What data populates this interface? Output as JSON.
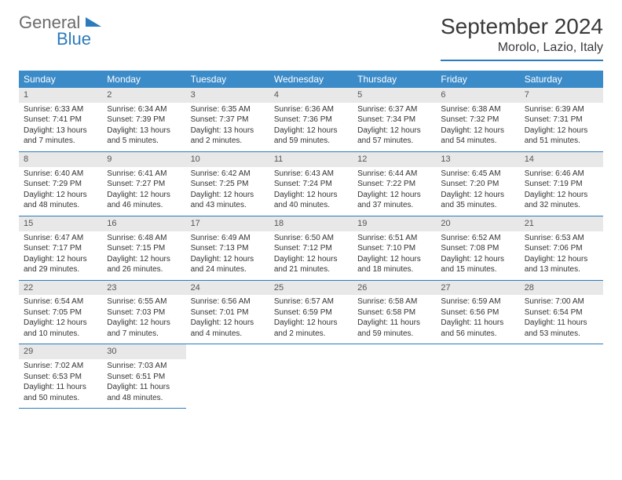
{
  "brand": {
    "general": "General",
    "blue": "Blue"
  },
  "title": "September 2024",
  "location": "Morolo, Lazio, Italy",
  "colors": {
    "header_bg": "#3b8bc9",
    "accent": "#2b7bbd",
    "daynum_bg": "#e8e8e8",
    "text": "#333333"
  },
  "weekdays": [
    "Sunday",
    "Monday",
    "Tuesday",
    "Wednesday",
    "Thursday",
    "Friday",
    "Saturday"
  ],
  "days": [
    {
      "n": 1,
      "sr": "6:33 AM",
      "ss": "7:41 PM",
      "dl": "13 hours and 7 minutes."
    },
    {
      "n": 2,
      "sr": "6:34 AM",
      "ss": "7:39 PM",
      "dl": "13 hours and 5 minutes."
    },
    {
      "n": 3,
      "sr": "6:35 AM",
      "ss": "7:37 PM",
      "dl": "13 hours and 2 minutes."
    },
    {
      "n": 4,
      "sr": "6:36 AM",
      "ss": "7:36 PM",
      "dl": "12 hours and 59 minutes."
    },
    {
      "n": 5,
      "sr": "6:37 AM",
      "ss": "7:34 PM",
      "dl": "12 hours and 57 minutes."
    },
    {
      "n": 6,
      "sr": "6:38 AM",
      "ss": "7:32 PM",
      "dl": "12 hours and 54 minutes."
    },
    {
      "n": 7,
      "sr": "6:39 AM",
      "ss": "7:31 PM",
      "dl": "12 hours and 51 minutes."
    },
    {
      "n": 8,
      "sr": "6:40 AM",
      "ss": "7:29 PM",
      "dl": "12 hours and 48 minutes."
    },
    {
      "n": 9,
      "sr": "6:41 AM",
      "ss": "7:27 PM",
      "dl": "12 hours and 46 minutes."
    },
    {
      "n": 10,
      "sr": "6:42 AM",
      "ss": "7:25 PM",
      "dl": "12 hours and 43 minutes."
    },
    {
      "n": 11,
      "sr": "6:43 AM",
      "ss": "7:24 PM",
      "dl": "12 hours and 40 minutes."
    },
    {
      "n": 12,
      "sr": "6:44 AM",
      "ss": "7:22 PM",
      "dl": "12 hours and 37 minutes."
    },
    {
      "n": 13,
      "sr": "6:45 AM",
      "ss": "7:20 PM",
      "dl": "12 hours and 35 minutes."
    },
    {
      "n": 14,
      "sr": "6:46 AM",
      "ss": "7:19 PM",
      "dl": "12 hours and 32 minutes."
    },
    {
      "n": 15,
      "sr": "6:47 AM",
      "ss": "7:17 PM",
      "dl": "12 hours and 29 minutes."
    },
    {
      "n": 16,
      "sr": "6:48 AM",
      "ss": "7:15 PM",
      "dl": "12 hours and 26 minutes."
    },
    {
      "n": 17,
      "sr": "6:49 AM",
      "ss": "7:13 PM",
      "dl": "12 hours and 24 minutes."
    },
    {
      "n": 18,
      "sr": "6:50 AM",
      "ss": "7:12 PM",
      "dl": "12 hours and 21 minutes."
    },
    {
      "n": 19,
      "sr": "6:51 AM",
      "ss": "7:10 PM",
      "dl": "12 hours and 18 minutes."
    },
    {
      "n": 20,
      "sr": "6:52 AM",
      "ss": "7:08 PM",
      "dl": "12 hours and 15 minutes."
    },
    {
      "n": 21,
      "sr": "6:53 AM",
      "ss": "7:06 PM",
      "dl": "12 hours and 13 minutes."
    },
    {
      "n": 22,
      "sr": "6:54 AM",
      "ss": "7:05 PM",
      "dl": "12 hours and 10 minutes."
    },
    {
      "n": 23,
      "sr": "6:55 AM",
      "ss": "7:03 PM",
      "dl": "12 hours and 7 minutes."
    },
    {
      "n": 24,
      "sr": "6:56 AM",
      "ss": "7:01 PM",
      "dl": "12 hours and 4 minutes."
    },
    {
      "n": 25,
      "sr": "6:57 AM",
      "ss": "6:59 PM",
      "dl": "12 hours and 2 minutes."
    },
    {
      "n": 26,
      "sr": "6:58 AM",
      "ss": "6:58 PM",
      "dl": "11 hours and 59 minutes."
    },
    {
      "n": 27,
      "sr": "6:59 AM",
      "ss": "6:56 PM",
      "dl": "11 hours and 56 minutes."
    },
    {
      "n": 28,
      "sr": "7:00 AM",
      "ss": "6:54 PM",
      "dl": "11 hours and 53 minutes."
    },
    {
      "n": 29,
      "sr": "7:02 AM",
      "ss": "6:53 PM",
      "dl": "11 hours and 50 minutes."
    },
    {
      "n": 30,
      "sr": "7:03 AM",
      "ss": "6:51 PM",
      "dl": "11 hours and 48 minutes."
    }
  ],
  "labels": {
    "sunrise": "Sunrise:",
    "sunset": "Sunset:",
    "daylight": "Daylight:"
  },
  "layout": {
    "first_day_col": 0,
    "rows": 5,
    "cols": 7
  }
}
